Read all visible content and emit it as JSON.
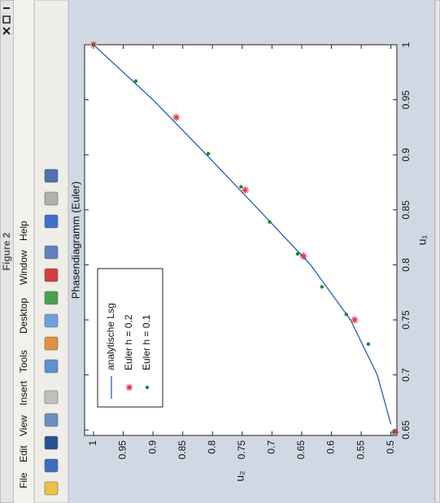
{
  "window": {
    "title": "Figure 2",
    "menu": [
      "File",
      "Edit",
      "View",
      "Insert",
      "Tools",
      "Desktop",
      "Window",
      "Help"
    ]
  },
  "chart_data": {
    "type": "line",
    "title": "Phasendiagramm (Euler)",
    "x_label": "u₁",
    "y_label": "u₂",
    "xlim": [
      0.645,
      1
    ],
    "xticks": [
      0.65,
      0.7,
      0.75,
      0.8,
      0.85,
      0.9,
      0.95,
      1
    ],
    "ylim": [
      0.49,
      1.015
    ],
    "yticks": [
      0.5,
      0.55,
      0.6,
      0.65,
      0.7,
      0.75,
      0.8,
      0.85,
      0.9,
      0.95,
      1
    ],
    "series": [
      {
        "name": "analytische Lsg",
        "color": "#1f5fbf",
        "mode": "line",
        "x": [
          0.655,
          0.7,
          0.75,
          0.8,
          0.85,
          0.9,
          0.95,
          1
        ],
        "values": [
          0.5,
          0.523,
          0.568,
          0.635,
          0.722,
          0.81,
          0.9,
          1
        ]
      },
      {
        "name": "Euler h = 0.2",
        "color": "#e8304a",
        "mode": "markers",
        "marker": "star",
        "x": [
          1,
          0.934,
          0.868,
          0.808,
          0.75,
          0.648
        ],
        "values": [
          1,
          0.861,
          0.745,
          0.647,
          0.561,
          0.493
        ]
      },
      {
        "name": "Euler h = 0.1",
        "color": "#1a8a2a",
        "mode": "markers",
        "marker": "dot",
        "x": [
          1,
          0.967,
          0.901,
          0.871,
          0.839,
          0.81,
          0.78,
          0.755,
          0.728,
          0.648
        ],
        "values": [
          1,
          0.929,
          0.807,
          0.752,
          0.704,
          0.657,
          0.616,
          0.575,
          0.538,
          0.495
        ]
      }
    ],
    "legend": "upper-left"
  }
}
